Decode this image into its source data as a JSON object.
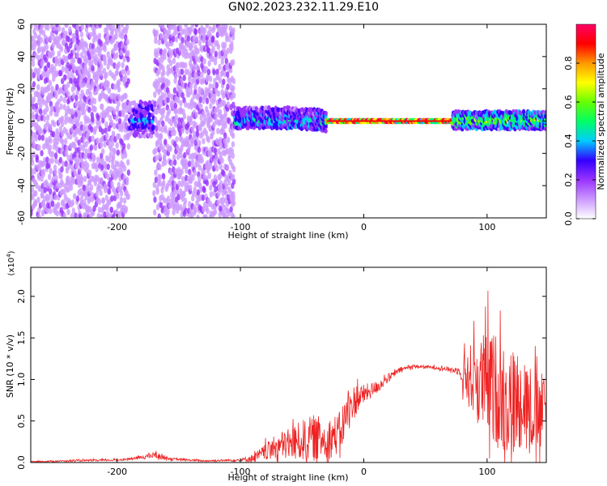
{
  "figure": {
    "title": "GN02.2023.232.11.29.E10"
  },
  "chart_data": [
    {
      "type": "heatmap",
      "xlabel": "Height of straight line (km)",
      "ylabel": "Frequency (Hz)",
      "xlim": [
        -270,
        148
      ],
      "ylim": [
        -60,
        60
      ],
      "x_ticks": [
        "-200",
        "-100",
        "0",
        "100"
      ],
      "y_ticks": [
        "-60",
        "-40",
        "-20",
        "0",
        "20",
        "40",
        "60"
      ],
      "colorbar": {
        "label": "Normalized spectral amplitude",
        "range": [
          0,
          1
        ],
        "ticks": [
          "0.0",
          "0.2",
          "0.4",
          "0.6",
          "0.8"
        ],
        "colormap": [
          "#ffffff",
          "#cc99ff",
          "#9933ff",
          "#3300ff",
          "#00ccff",
          "#00ff66",
          "#66ff00",
          "#ffff00",
          "#ff9900",
          "#ff0000",
          "#ff0066"
        ]
      },
      "regions": [
        {
          "x_range": [
            -270,
            -190
          ],
          "pattern": "broadband noise",
          "freq_range": [
            -60,
            60
          ],
          "amplitude": 0.12
        },
        {
          "x_range": [
            -190,
            -170
          ],
          "pattern": "narrowband patch",
          "freq_range": [
            -10,
            12
          ],
          "amplitude": 0.3
        },
        {
          "x_range": [
            -170,
            -105
          ],
          "pattern": "broadband noise",
          "freq_range": [
            -60,
            60
          ],
          "amplitude": 0.12
        },
        {
          "x_range": [
            -105,
            -30
          ],
          "pattern": "narrowband",
          "freq_range": [
            -8,
            8
          ],
          "amplitude": 0.35
        },
        {
          "x_range": [
            -30,
            72
          ],
          "pattern": "narrow line",
          "freq_range": [
            -1.5,
            1.5
          ],
          "amplitude": 0.95
        },
        {
          "x_range": [
            72,
            148
          ],
          "pattern": "narrowband",
          "freq_range": [
            -5,
            6
          ],
          "amplitude": 0.5
        }
      ]
    },
    {
      "type": "line",
      "xlabel": "Height of straight line (km)",
      "ylabel": "SNR (10 * v/v)",
      "y_multiplier": "(x10",
      "y_multiplier_exp": "4",
      "y_multiplier_close": ")",
      "xlim": [
        -270,
        148
      ],
      "ylim": [
        0,
        2.35
      ],
      "x_ticks": [
        "-200",
        "-100",
        "0",
        "100"
      ],
      "y_ticks": [
        "0.0",
        "0.5",
        "1.0",
        "1.5",
        "2.0"
      ],
      "series": [
        {
          "color": "#ee2222",
          "x": [
            -270,
            -240,
            -200,
            -185,
            -170,
            -155,
            -130,
            -100,
            -90,
            -80,
            -70,
            -60,
            -50,
            -40,
            -30,
            -20,
            -12,
            -5,
            0,
            10,
            20,
            30,
            40,
            50,
            60,
            70,
            78,
            82,
            90,
            100,
            110,
            120,
            130,
            140,
            148
          ],
          "y": [
            0.01,
            0.02,
            0.03,
            0.05,
            0.09,
            0.04,
            0.02,
            0.03,
            0.05,
            0.12,
            0.2,
            0.22,
            0.26,
            0.3,
            0.28,
            0.35,
            0.65,
            0.78,
            0.82,
            0.9,
            1.02,
            1.12,
            1.16,
            1.15,
            1.14,
            1.12,
            1.1,
            1.05,
            1.0,
            0.95,
            0.85,
            0.7,
            0.8,
            0.55,
            0.65
          ],
          "noise_amplitude": [
            0.005,
            0.01,
            0.01,
            0.015,
            0.04,
            0.015,
            0.01,
            0.015,
            0.05,
            0.1,
            0.15,
            0.2,
            0.25,
            0.28,
            0.25,
            0.25,
            0.25,
            0.18,
            0.12,
            0.08,
            0.05,
            0.03,
            0.02,
            0.02,
            0.02,
            0.03,
            0.05,
            0.3,
            0.5,
            0.65,
            0.7,
            0.7,
            0.55,
            0.5,
            0.45
          ]
        }
      ]
    }
  ]
}
